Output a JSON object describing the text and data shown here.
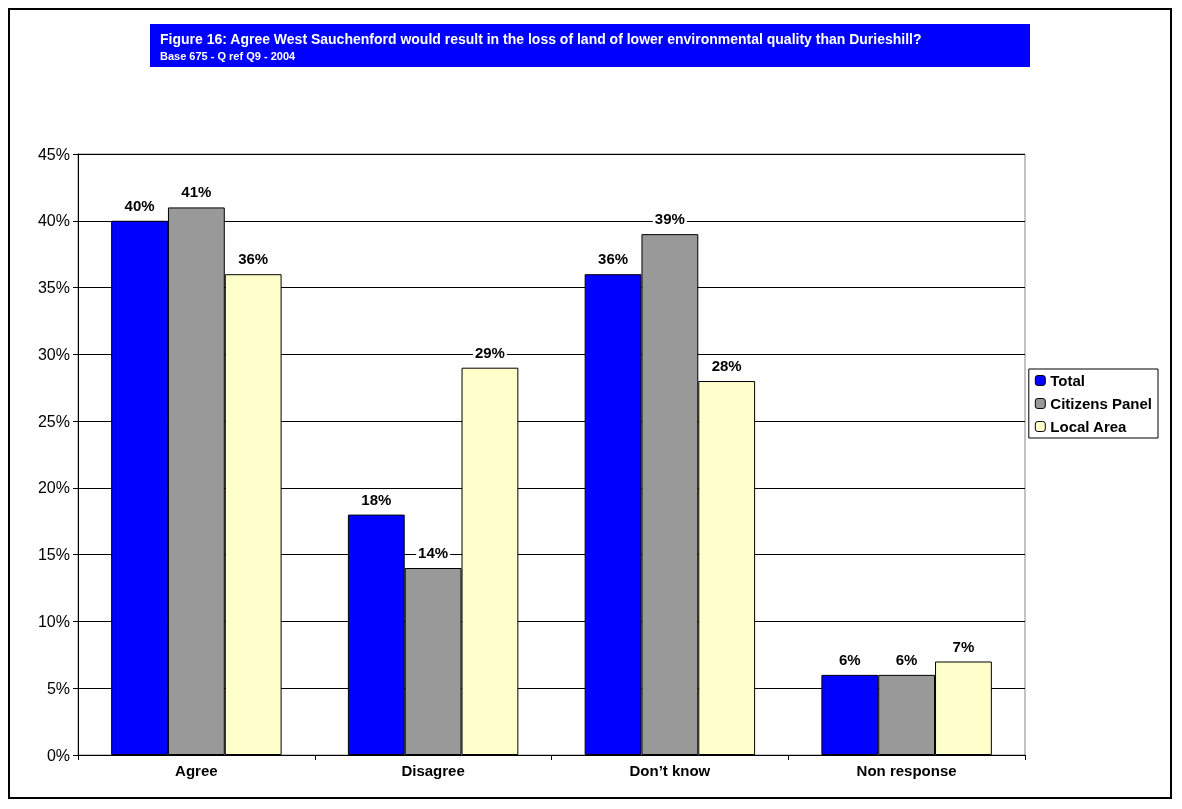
{
  "chart_data": {
    "type": "bar",
    "title": "Figure 16: Agree West Sauchenford would result in the loss of land of lower environmental quality than Durieshill?",
    "subtitle": "Base 675 - Q ref Q9 - 2004",
    "categories": [
      "Agree",
      "Disagree",
      "Don’t know",
      "Non response"
    ],
    "series": [
      {
        "name": "Total",
        "color": "#0000ff",
        "values": [
          40,
          18,
          36,
          6
        ],
        "value_labels": [
          "40%",
          "18%",
          "36%",
          "6%"
        ]
      },
      {
        "name": "Citizens Panel",
        "color": "#999999",
        "values": [
          41,
          14,
          39,
          6
        ],
        "value_labels": [
          "41%",
          "14%",
          "39%",
          "6%"
        ]
      },
      {
        "name": "Local Area",
        "color": "#ffffcc",
        "values": [
          36,
          29,
          28,
          7
        ],
        "value_labels": [
          "36%",
          "29%",
          "28%",
          "7%"
        ]
      }
    ],
    "ylim": [
      0,
      45
    ],
    "yticks": [
      {
        "value": 0,
        "label": "0%"
      },
      {
        "value": 5,
        "label": "5%"
      },
      {
        "value": 10,
        "label": "10%"
      },
      {
        "value": 15,
        "label": "15%"
      },
      {
        "value": 20,
        "label": "20%"
      },
      {
        "value": 25,
        "label": "25%"
      },
      {
        "value": 30,
        "label": "30%"
      },
      {
        "value": 35,
        "label": "35%"
      },
      {
        "value": 40,
        "label": "40%"
      },
      {
        "value": 45,
        "label": "45%"
      }
    ],
    "grid": "y",
    "legend": "right"
  }
}
